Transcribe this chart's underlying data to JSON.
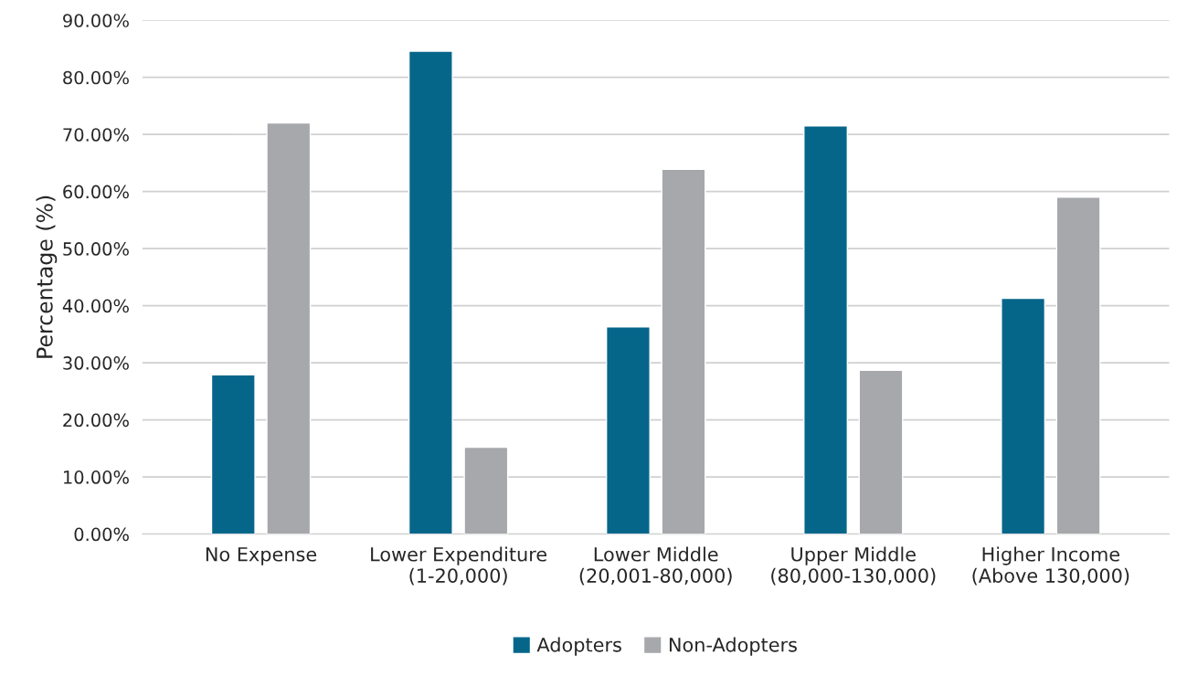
{
  "chart_data": {
    "type": "bar",
    "ylabel": "Percentage (%)",
    "categories": [
      "No Expense",
      "Lower Expenditure\n(1-20,000)",
      "Lower Middle\n(20,001-80,000)",
      "Upper Middle\n(80,000-130,000)",
      "Higher Income\n(Above 130,000)"
    ],
    "series": [
      {
        "name": "Adopters",
        "color": "#06668a",
        "values": [
          27.9,
          84.6,
          36.3,
          71.5,
          41.3
        ]
      },
      {
        "name": "Non-Adopters",
        "color": "#a7a8ab",
        "values": [
          72.0,
          15.2,
          63.9,
          28.7,
          59.0
        ]
      }
    ],
    "ylim": [
      0,
      90
    ],
    "yticks": [
      {
        "value": 0,
        "label": "0.00%"
      },
      {
        "value": 10,
        "label": "10.00%"
      },
      {
        "value": 20,
        "label": "20.00%"
      },
      {
        "value": 30,
        "label": "30.00%"
      },
      {
        "value": 40,
        "label": "40.00%"
      },
      {
        "value": 50,
        "label": "50.00%"
      },
      {
        "value": 60,
        "label": "60.00%"
      },
      {
        "value": 70,
        "label": "70.00%"
      },
      {
        "value": 80,
        "label": "80.00%"
      },
      {
        "value": 90,
        "label": "90.00%"
      }
    ],
    "grid": "y",
    "legend": "bottom"
  }
}
